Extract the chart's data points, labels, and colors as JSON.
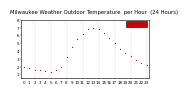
{
  "title": "Milwaukee Weather Outdoor Temperature  per Hour  (24 Hours)",
  "hours": [
    0,
    1,
    2,
    3,
    4,
    5,
    6,
    7,
    8,
    9,
    10,
    11,
    12,
    13,
    14,
    15,
    16,
    17,
    18,
    19,
    20,
    21,
    22,
    23
  ],
  "temps": [
    2.0,
    1.8,
    1.6,
    1.5,
    1.4,
    1.3,
    1.5,
    2.0,
    3.2,
    4.5,
    5.5,
    6.2,
    6.8,
    7.0,
    6.8,
    6.3,
    5.7,
    5.0,
    4.3,
    3.8,
    3.3,
    2.9,
    2.5,
    2.2
  ],
  "dot_color": "#cc0000",
  "bg_color": "#ffffff",
  "grid_color": "#aaaaaa",
  "ylim": [
    0.5,
    8.0
  ],
  "ytick_vals": [
    1,
    2,
    3,
    4,
    5,
    6,
    7,
    8
  ],
  "ytick_labels": [
    "1",
    "2",
    "3",
    "4",
    "5",
    "6",
    "7",
    "8"
  ],
  "legend_rect_color": "#cc0000",
  "title_fontsize": 3.8,
  "tick_fontsize": 3.0,
  "grid_hours": [
    2,
    5,
    8,
    11,
    14,
    17,
    20,
    23
  ]
}
